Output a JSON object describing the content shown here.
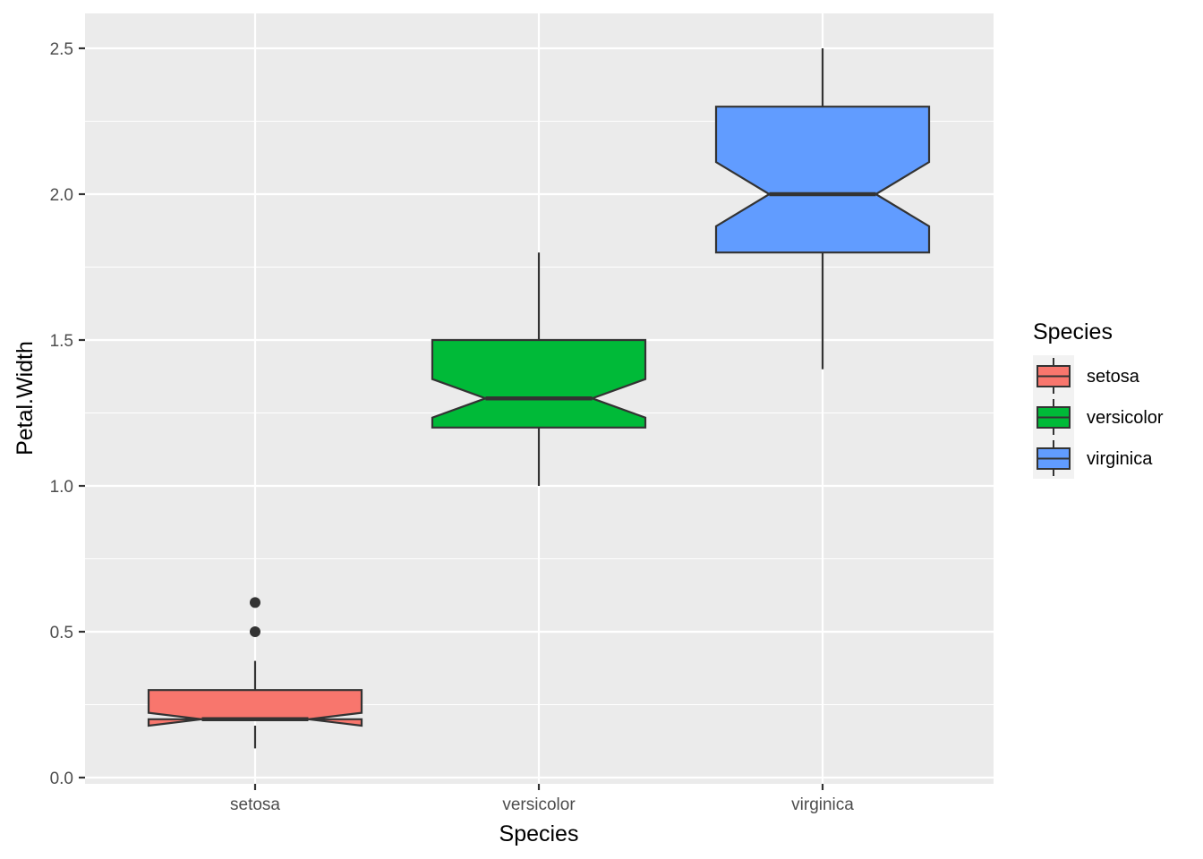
{
  "chart_data": {
    "type": "boxplot",
    "notched": true,
    "title": "",
    "xlabel": "Species",
    "ylabel": "Petal.Width",
    "ylim": [
      0,
      2.5
    ],
    "y_ticks": [
      "0.0",
      "0.5",
      "1.0",
      "1.5",
      "2.0",
      "2.5"
    ],
    "y_tick_values": [
      0,
      0.5,
      1.0,
      1.5,
      2.0,
      2.5
    ],
    "categories": [
      "setosa",
      "versicolor",
      "virginica"
    ],
    "grid": true,
    "legend_position": "right",
    "legend": {
      "title": "Species",
      "entries": [
        "setosa",
        "versicolor",
        "virginica"
      ]
    },
    "series": [
      {
        "name": "setosa",
        "color": "#F8766D",
        "whisker_low": 0.1,
        "q1": 0.2,
        "median": 0.2,
        "q3": 0.3,
        "whisker_high": 0.4,
        "notch_low": 0.178,
        "notch_high": 0.222,
        "outliers": [
          0.5,
          0.6
        ]
      },
      {
        "name": "versicolor",
        "color": "#00BA38",
        "whisker_low": 1.0,
        "q1": 1.2,
        "median": 1.3,
        "q3": 1.5,
        "whisker_high": 1.8,
        "notch_low": 1.234,
        "notch_high": 1.366,
        "outliers": []
      },
      {
        "name": "virginica",
        "color": "#619CFF",
        "whisker_low": 1.4,
        "q1": 1.8,
        "median": 2.0,
        "q3": 2.3,
        "whisker_high": 2.5,
        "notch_low": 1.89,
        "notch_high": 2.11,
        "outliers": []
      }
    ]
  },
  "colors": {
    "panel_bg": "#EBEBEB",
    "grid": "#FFFFFF",
    "outline": "#333333",
    "legend_key_bg": "#F2F2F2"
  }
}
